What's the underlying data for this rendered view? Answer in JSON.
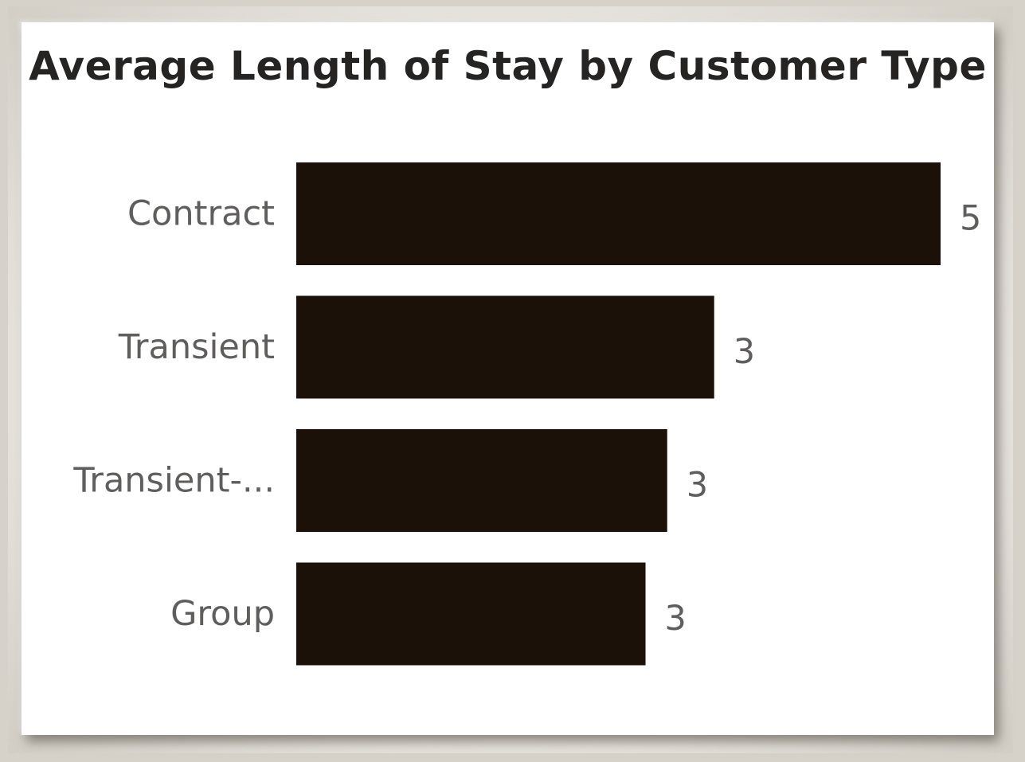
{
  "chart_data": {
    "type": "bar",
    "orientation": "horizontal",
    "title": "Average Length of Stay by Customer Type",
    "categories": [
      "Contract",
      "Transient",
      "Transient-...",
      "Group"
    ],
    "values": [
      5.35,
      3.47,
      3.08,
      2.9
    ],
    "data_labels": [
      "5",
      "3",
      "3",
      "3"
    ],
    "xlabel": "",
    "ylabel": "",
    "xlim": [
      0,
      5.35
    ],
    "grid": false,
    "legend": "none",
    "bar_color": "#1b1108",
    "label_color": "#605e5c",
    "title_color": "#252423"
  }
}
